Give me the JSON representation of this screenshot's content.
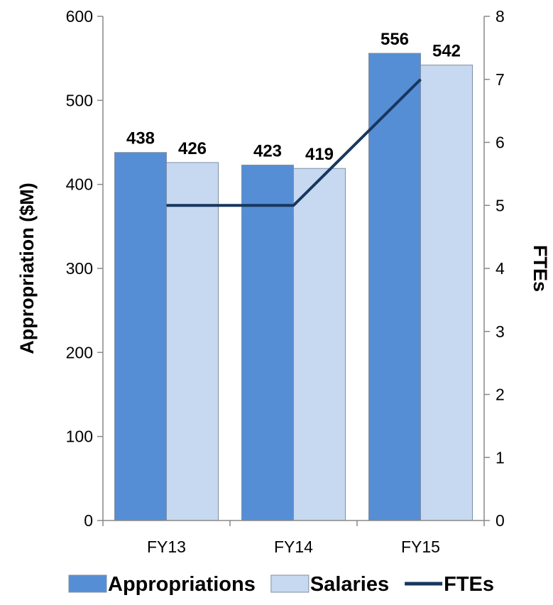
{
  "chart_data": {
    "type": "bar",
    "categories": [
      "FY13",
      "FY14",
      "FY15"
    ],
    "series": [
      {
        "name": "Appropriations",
        "kind": "bar",
        "axis": "left",
        "color": "#558ed5",
        "values": [
          438,
          423,
          556
        ]
      },
      {
        "name": "Salaries",
        "kind": "bar",
        "axis": "left",
        "color": "#c6d9f1",
        "values": [
          426,
          419,
          542
        ]
      },
      {
        "name": "FTEs",
        "kind": "line",
        "axis": "right",
        "color": "#17375e",
        "values": [
          5,
          5,
          7
        ]
      }
    ],
    "ylabel": "Appropriation ($M)",
    "y2label": "FTEs",
    "ylim": [
      0,
      600
    ],
    "y2lim": [
      0,
      8
    ],
    "yticks": [
      0,
      100,
      200,
      300,
      400,
      500,
      600
    ],
    "y2ticks": [
      0,
      1,
      2,
      3,
      4,
      5,
      6,
      7,
      8
    ],
    "grid": false,
    "data_labels": true,
    "legend": "bottom"
  }
}
